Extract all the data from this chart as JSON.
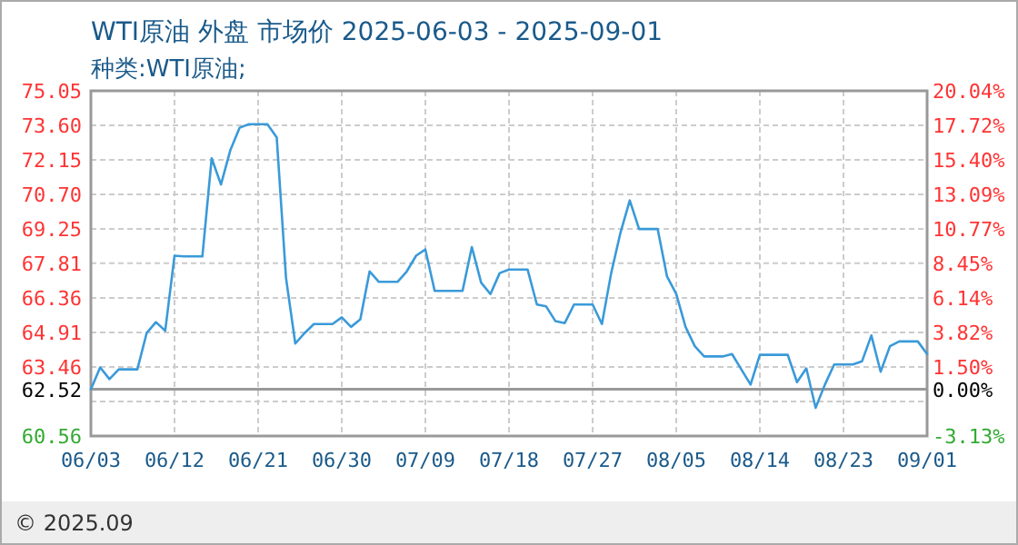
{
  "chart_data": {
    "type": "line",
    "title": "WTI原油 外盘 市场价 2025-06-03 - 2025-09-01",
    "subtitle": "种类:WTI原油;",
    "x": [
      "2025-06-03",
      "2025-06-04",
      "2025-06-05",
      "2025-06-06",
      "2025-06-07",
      "2025-06-08",
      "2025-06-09",
      "2025-06-10",
      "2025-06-11",
      "2025-06-12",
      "2025-06-13",
      "2025-06-14",
      "2025-06-15",
      "2025-06-16",
      "2025-06-17",
      "2025-06-18",
      "2025-06-19",
      "2025-06-20",
      "2025-06-21",
      "2025-06-22",
      "2025-06-23",
      "2025-06-24",
      "2025-06-25",
      "2025-06-26",
      "2025-06-27",
      "2025-06-28",
      "2025-06-29",
      "2025-06-30",
      "2025-07-01",
      "2025-07-02",
      "2025-07-03",
      "2025-07-04",
      "2025-07-05",
      "2025-07-06",
      "2025-07-07",
      "2025-07-08",
      "2025-07-09",
      "2025-07-10",
      "2025-07-11",
      "2025-07-12",
      "2025-07-13",
      "2025-07-14",
      "2025-07-15",
      "2025-07-16",
      "2025-07-17",
      "2025-07-18",
      "2025-07-19",
      "2025-07-20",
      "2025-07-21",
      "2025-07-22",
      "2025-07-23",
      "2025-07-24",
      "2025-07-25",
      "2025-07-26",
      "2025-07-27",
      "2025-07-28",
      "2025-07-29",
      "2025-07-30",
      "2025-07-31",
      "2025-08-01",
      "2025-08-02",
      "2025-08-03",
      "2025-08-04",
      "2025-08-05",
      "2025-08-06",
      "2025-08-07",
      "2025-08-08",
      "2025-08-09",
      "2025-08-10",
      "2025-08-11",
      "2025-08-12",
      "2025-08-13",
      "2025-08-14",
      "2025-08-15",
      "2025-08-16",
      "2025-08-17",
      "2025-08-18",
      "2025-08-19",
      "2025-08-20",
      "2025-08-21",
      "2025-08-22",
      "2025-08-23",
      "2025-08-24",
      "2025-08-25",
      "2025-08-26",
      "2025-08-27",
      "2025-08-28",
      "2025-08-29",
      "2025-08-30",
      "2025-08-31",
      "2025-09-01"
    ],
    "series": [
      {
        "color": "#3a9ad9",
        "values": [
          62.52,
          63.44,
          62.95,
          63.36,
          63.36,
          63.36,
          64.88,
          65.34,
          64.98,
          68.13,
          68.1,
          68.1,
          68.1,
          72.22,
          71.12,
          72.55,
          73.5,
          73.65,
          73.65,
          73.65,
          73.1,
          67.2,
          64.44,
          64.88,
          65.26,
          65.26,
          65.26,
          65.54,
          65.14,
          65.46,
          67.47,
          67.03,
          67.03,
          67.03,
          67.47,
          68.13,
          68.39,
          66.65,
          66.65,
          66.65,
          66.65,
          68.49,
          67.0,
          66.52,
          67.4,
          67.55,
          67.55,
          67.55,
          66.08,
          66.0,
          65.38,
          65.3,
          66.08,
          66.08,
          66.08,
          65.26,
          67.4,
          69.1,
          70.45,
          69.25,
          69.25,
          69.25,
          67.27,
          66.52,
          65.14,
          64.33,
          63.9,
          63.9,
          63.9,
          64.0,
          63.36,
          62.72,
          63.97,
          63.97,
          63.97,
          63.97,
          62.82,
          63.4,
          61.74,
          62.72,
          63.56,
          63.56,
          63.56,
          63.7,
          64.78,
          63.26,
          64.33,
          64.53,
          64.53,
          64.53,
          64.0
        ]
      }
    ],
    "xlim": [
      "2025-06-03",
      "2025-09-01"
    ],
    "xticks": [
      {
        "value": "2025-06-03",
        "label": "06/03"
      },
      {
        "value": "2025-06-12",
        "label": "06/12"
      },
      {
        "value": "2025-06-21",
        "label": "06/21"
      },
      {
        "value": "2025-06-30",
        "label": "06/30"
      },
      {
        "value": "2025-07-09",
        "label": "07/09"
      },
      {
        "value": "2025-07-18",
        "label": "07/18"
      },
      {
        "value": "2025-07-27",
        "label": "07/27"
      },
      {
        "value": "2025-08-05",
        "label": "08/05"
      },
      {
        "value": "2025-08-14",
        "label": "08/14"
      },
      {
        "value": "2025-08-23",
        "label": "08/23"
      },
      {
        "value": "2025-09-01",
        "label": "09/01"
      }
    ],
    "ylim": [
      60.56,
      75.05
    ],
    "yticks": [
      60.56,
      {
        "value": 62.01,
        "label": null
      },
      62.52,
      63.46,
      64.91,
      66.36,
      67.81,
      69.25,
      {
        "value": 70.7,
        "label": "70.70"
      },
      72.15,
      {
        "value": 73.6,
        "label": "73.60"
      },
      75.05
    ],
    "y2lim": [
      -3.13,
      20.04
    ],
    "y2ticks": [
      {
        "value": -3.13,
        "label": "-3.13%"
      },
      {
        "value": 0,
        "label": "0.00%"
      },
      {
        "value": 1.5,
        "label": "1.50%"
      },
      {
        "value": 3.82,
        "label": "3.82%"
      },
      {
        "value": 6.14,
        "label": "6.14%"
      },
      {
        "value": 8.45,
        "label": "8.45%"
      },
      {
        "value": 10.77,
        "label": "10.77%"
      },
      {
        "value": 13.09,
        "label": "13.09%"
      },
      {
        "value": 15.4,
        "label": "15.40%"
      },
      {
        "value": 17.72,
        "label": "17.72%"
      },
      {
        "value": 20.04,
        "label": "20.04%"
      }
    ],
    "ref_lines": [
      {
        "axis": "y",
        "value": 62.52,
        "color": "#999999",
        "line_style": "solid"
      }
    ],
    "grid": true,
    "marker": "none",
    "line_style": "solid",
    "annotations": [
      "© 2025.09"
    ]
  }
}
